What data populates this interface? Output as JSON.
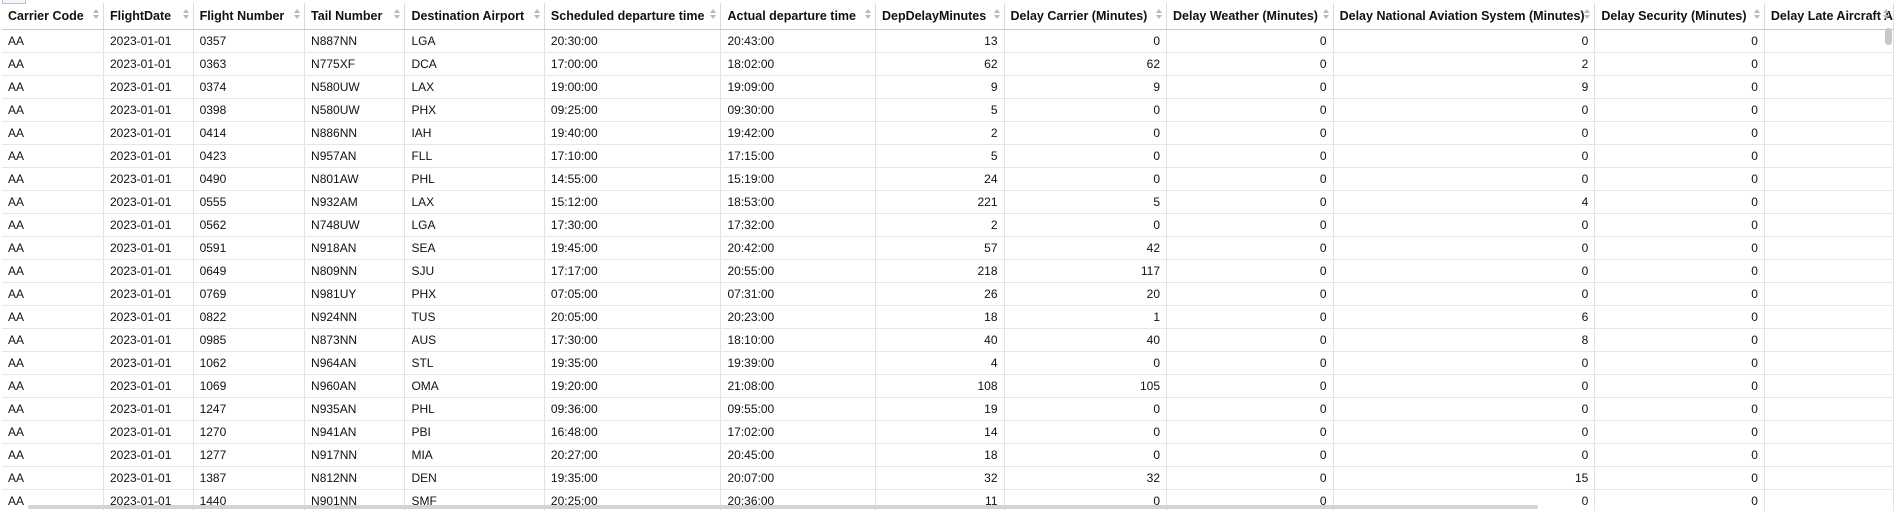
{
  "table": {
    "columns": [
      {
        "label": "Carrier Code",
        "align": "left"
      },
      {
        "label": "FlightDate",
        "align": "left"
      },
      {
        "label": "Flight Number",
        "align": "left"
      },
      {
        "label": "Tail Number",
        "align": "left"
      },
      {
        "label": "Destination Airport",
        "align": "left"
      },
      {
        "label": "Scheduled departure time",
        "align": "left"
      },
      {
        "label": "Actual departure time",
        "align": "left"
      },
      {
        "label": "DepDelayMinutes",
        "align": "right"
      },
      {
        "label": "Delay Carrier (Minutes)",
        "align": "right"
      },
      {
        "label": "Delay Weather (Minutes)",
        "align": "right"
      },
      {
        "label": "Delay National Aviation System (Minutes)",
        "align": "right"
      },
      {
        "label": "Delay Security (Minutes)",
        "align": "right"
      },
      {
        "label": "Delay Late Aircraft A",
        "align": "right"
      }
    ],
    "rows": [
      [
        "AA",
        "2023-01-01",
        "0357",
        "N887NN",
        "LGA",
        "20:30:00",
        "20:43:00",
        "13",
        "0",
        "0",
        "0",
        "0",
        ""
      ],
      [
        "AA",
        "2023-01-01",
        "0363",
        "N775XF",
        "DCA",
        "17:00:00",
        "18:02:00",
        "62",
        "62",
        "0",
        "2",
        "0",
        ""
      ],
      [
        "AA",
        "2023-01-01",
        "0374",
        "N580UW",
        "LAX",
        "19:00:00",
        "19:09:00",
        "9",
        "9",
        "0",
        "9",
        "0",
        ""
      ],
      [
        "AA",
        "2023-01-01",
        "0398",
        "N580UW",
        "PHX",
        "09:25:00",
        "09:30:00",
        "5",
        "0",
        "0",
        "0",
        "0",
        ""
      ],
      [
        "AA",
        "2023-01-01",
        "0414",
        "N886NN",
        "IAH",
        "19:40:00",
        "19:42:00",
        "2",
        "0",
        "0",
        "0",
        "0",
        ""
      ],
      [
        "AA",
        "2023-01-01",
        "0423",
        "N957AN",
        "FLL",
        "17:10:00",
        "17:15:00",
        "5",
        "0",
        "0",
        "0",
        "0",
        ""
      ],
      [
        "AA",
        "2023-01-01",
        "0490",
        "N801AW",
        "PHL",
        "14:55:00",
        "15:19:00",
        "24",
        "0",
        "0",
        "0",
        "0",
        ""
      ],
      [
        "AA",
        "2023-01-01",
        "0555",
        "N932AM",
        "LAX",
        "15:12:00",
        "18:53:00",
        "221",
        "5",
        "0",
        "4",
        "0",
        ""
      ],
      [
        "AA",
        "2023-01-01",
        "0562",
        "N748UW",
        "LGA",
        "17:30:00",
        "17:32:00",
        "2",
        "0",
        "0",
        "0",
        "0",
        ""
      ],
      [
        "AA",
        "2023-01-01",
        "0591",
        "N918AN",
        "SEA",
        "19:45:00",
        "20:42:00",
        "57",
        "42",
        "0",
        "0",
        "0",
        ""
      ],
      [
        "AA",
        "2023-01-01",
        "0649",
        "N809NN",
        "SJU",
        "17:17:00",
        "20:55:00",
        "218",
        "117",
        "0",
        "0",
        "0",
        ""
      ],
      [
        "AA",
        "2023-01-01",
        "0769",
        "N981UY",
        "PHX",
        "07:05:00",
        "07:31:00",
        "26",
        "20",
        "0",
        "0",
        "0",
        ""
      ],
      [
        "AA",
        "2023-01-01",
        "0822",
        "N924NN",
        "TUS",
        "20:05:00",
        "20:23:00",
        "18",
        "1",
        "0",
        "6",
        "0",
        ""
      ],
      [
        "AA",
        "2023-01-01",
        "0985",
        "N873NN",
        "AUS",
        "17:30:00",
        "18:10:00",
        "40",
        "40",
        "0",
        "8",
        "0",
        ""
      ],
      [
        "AA",
        "2023-01-01",
        "1062",
        "N964AN",
        "STL",
        "19:35:00",
        "19:39:00",
        "4",
        "0",
        "0",
        "0",
        "0",
        ""
      ],
      [
        "AA",
        "2023-01-01",
        "1069",
        "N960AN",
        "OMA",
        "19:20:00",
        "21:08:00",
        "108",
        "105",
        "0",
        "0",
        "0",
        ""
      ],
      [
        "AA",
        "2023-01-01",
        "1247",
        "N935AN",
        "PHL",
        "09:36:00",
        "09:55:00",
        "19",
        "0",
        "0",
        "0",
        "0",
        ""
      ],
      [
        "AA",
        "2023-01-01",
        "1270",
        "N941AN",
        "PBI",
        "16:48:00",
        "17:02:00",
        "14",
        "0",
        "0",
        "0",
        "0",
        ""
      ],
      [
        "AA",
        "2023-01-01",
        "1277",
        "N917NN",
        "MIA",
        "20:27:00",
        "20:45:00",
        "18",
        "0",
        "0",
        "0",
        "0",
        ""
      ],
      [
        "AA",
        "2023-01-01",
        "1387",
        "N812NN",
        "DEN",
        "19:35:00",
        "20:07:00",
        "32",
        "32",
        "0",
        "15",
        "0",
        ""
      ],
      [
        "AA",
        "2023-01-01",
        "1440",
        "N901NN",
        "SMF",
        "20:25:00",
        "20:36:00",
        "11",
        "0",
        "0",
        "0",
        "0",
        ""
      ]
    ]
  },
  "colors": {
    "header_border": "#c8c8c8",
    "cell_border": "#e2e2e2",
    "scroll_thumb": "#c8c8c8",
    "sort_arrow": "#b9b9b9"
  }
}
